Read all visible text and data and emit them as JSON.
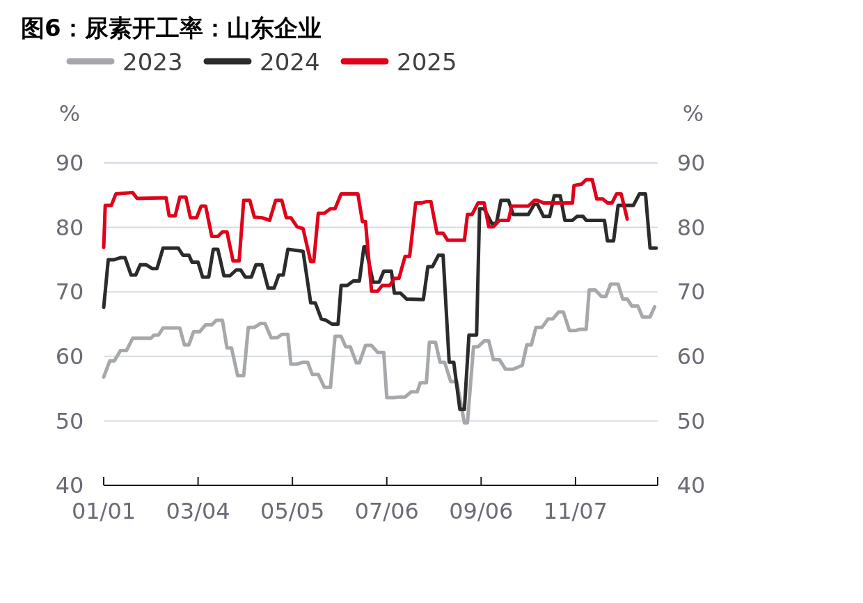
{
  "chart_data": {
    "type": "line",
    "title": "图6：尿素开工率：山东企业",
    "ylabel": "%",
    "y2label": "%",
    "legend": "top left",
    "grid": "y",
    "xlim": [
      "--01-01",
      "--12-31"
    ],
    "xticks": [
      {
        "value": "--01-01",
        "label": "01/01"
      },
      {
        "value": "--03-04",
        "label": "03/04"
      },
      {
        "value": "--05-05",
        "label": "05/05"
      },
      {
        "value": "--07-06",
        "label": "07/06"
      },
      {
        "value": "--09-06",
        "label": "09/06"
      },
      {
        "value": "--11-07",
        "label": "11/07"
      },
      {
        "value": "--12-31",
        "label": null
      }
    ],
    "ylim": [
      40,
      90
    ],
    "yticks": [
      40,
      50,
      60,
      70,
      80,
      90
    ],
    "y2lim": [
      40,
      90
    ],
    "y2ticks": [
      40,
      50,
      60,
      70,
      80,
      90
    ],
    "series": [
      {
        "name": "2023",
        "color": "#a6a8ab",
        "x": [
          "--01-01",
          "--01-05",
          "--01-08",
          "--01-12",
          "--01-16",
          "--01-20",
          "--02-01",
          "--02-03",
          "--02-06",
          "--02-09",
          "--02-20",
          "--02-23",
          "--02-26",
          "--03-01",
          "--03-05",
          "--03-09",
          "--03-13",
          "--03-16",
          "--03-20",
          "--03-23",
          "--03-26",
          "--03-30",
          "--04-03",
          "--04-06",
          "--04-10",
          "--04-14",
          "--04-17",
          "--04-21",
          "--04-25",
          "--04-28",
          "--05-02",
          "--05-04",
          "--05-08",
          "--05-12",
          "--05-15",
          "--05-18",
          "--05-22",
          "--05-26",
          "--05-30",
          "--06-02",
          "--06-06",
          "--06-09",
          "--06-12",
          "--06-16",
          "--06-18",
          "--06-22",
          "--06-26",
          "--06-30",
          "--07-04",
          "--07-06",
          "--07-11",
          "--07-14",
          "--07-18",
          "--07-22",
          "--07-26",
          "--07-28",
          "--08-01",
          "--08-03",
          "--08-07",
          "--08-10",
          "--08-13",
          "--08-17",
          "--08-21",
          "--08-26",
          "--08-28",
          "--09-01",
          "--09-04",
          "--09-08",
          "--09-11",
          "--09-14",
          "--09-18",
          "--09-22",
          "--09-27",
          "--10-03",
          "--10-06",
          "--10-09",
          "--10-12",
          "--10-16",
          "--10-20",
          "--10-23",
          "--10-27",
          "--10-30",
          "--11-03",
          "--11-07",
          "--11-10",
          "--11-14",
          "--11-16",
          "--11-20",
          "--11-24",
          "--11-27",
          "--11-30",
          "--12-05",
          "--12-08",
          "--12-11",
          "--12-14",
          "--12-18",
          "--12-21",
          "--12-26",
          "--12-29"
        ],
        "values": [
          56.8,
          59.3,
          59.3,
          60.9,
          60.9,
          62.8,
          62.8,
          63.3,
          63.3,
          64.4,
          64.4,
          61.8,
          61.8,
          63.8,
          63.8,
          64.9,
          64.9,
          65.6,
          65.6,
          61.3,
          61.3,
          57.0,
          57.0,
          64.5,
          64.5,
          65.1,
          65.1,
          62.9,
          62.9,
          63.4,
          63.4,
          58.8,
          58.8,
          59.1,
          59.1,
          57.2,
          57.2,
          55.2,
          55.2,
          63.1,
          63.1,
          61.5,
          61.5,
          59.0,
          59.0,
          61.7,
          61.7,
          60.6,
          60.6,
          53.6,
          53.6,
          53.7,
          53.7,
          54.5,
          54.5,
          55.9,
          55.9,
          62.2,
          62.2,
          59.1,
          59.1,
          56.1,
          56.1,
          49.7,
          49.7,
          61.5,
          61.5,
          62.4,
          62.4,
          59.5,
          59.5,
          58.0,
          58.0,
          58.6,
          61.8,
          61.8,
          64.5,
          64.5,
          65.8,
          65.8,
          66.9,
          66.9,
          64.0,
          64.0,
          64.2,
          64.2,
          70.3,
          70.3,
          69.3,
          69.3,
          71.2,
          71.2,
          68.9,
          68.9,
          67.8,
          67.8,
          66.1,
          66.1,
          67.7
        ]
      },
      {
        "name": "2024",
        "color": "#2b2b2b",
        "x": [
          "--01-01",
          "--01-04",
          "--01-08",
          "--01-12",
          "--01-15",
          "--01-19",
          "--01-22",
          "--01-25",
          "--01-29",
          "--02-02",
          "--02-05",
          "--02-09",
          "--02-19",
          "--02-22",
          "--02-26",
          "--02-28",
          "--03-04",
          "--03-07",
          "--03-11",
          "--03-14",
          "--03-17",
          "--03-21",
          "--03-25",
          "--03-29",
          "--04-01",
          "--04-04",
          "--04-08",
          "--04-11",
          "--04-15",
          "--04-19",
          "--04-23",
          "--04-26",
          "--04-29",
          "--05-02",
          "--05-12",
          "--05-17",
          "--05-20",
          "--05-24",
          "--05-27",
          "--05-31",
          "--06-04",
          "--06-06",
          "--06-10",
          "--06-14",
          "--06-18",
          "--06-21",
          "--06-22",
          "--06-27",
          "--07-01",
          "--07-04",
          "--07-09",
          "--07-11",
          "--07-15",
          "--07-19",
          "--07-30",
          "--08-02",
          "--08-05",
          "--08-09",
          "--08-12",
          "--08-16",
          "--08-19",
          "--08-23",
          "--08-26",
          "--08-29",
          "--09-03",
          "--09-05",
          "--09-08",
          "--09-13",
          "--09-16",
          "--09-19",
          "--09-24",
          "--09-27",
          "--10-07",
          "--10-11",
          "--10-13",
          "--10-17",
          "--10-21",
          "--10-24",
          "--10-28",
          "--10-31",
          "--11-05",
          "--11-08",
          "--11-12",
          "--11-14",
          "--11-26",
          "--11-28",
          "--12-02",
          "--12-05",
          "--12-15",
          "--12-19",
          "--12-23",
          "--12-26",
          "--12-30"
        ],
        "values": [
          67.6,
          75.0,
          75.0,
          75.3,
          75.3,
          72.6,
          72.6,
          74.2,
          74.2,
          73.6,
          73.6,
          76.8,
          76.8,
          75.7,
          75.7,
          74.6,
          74.6,
          72.3,
          72.3,
          76.6,
          76.6,
          72.5,
          72.5,
          73.4,
          73.4,
          72.3,
          72.3,
          74.2,
          74.2,
          70.6,
          70.6,
          72.6,
          72.6,
          76.6,
          76.3,
          68.3,
          68.3,
          65.8,
          65.6,
          65.0,
          65.0,
          71.0,
          71.0,
          71.7,
          71.7,
          77.0,
          77.0,
          71.5,
          71.5,
          73.2,
          73.2,
          69.8,
          69.8,
          68.9,
          68.8,
          73.9,
          73.9,
          75.7,
          75.7,
          59.1,
          59.1,
          51.8,
          51.8,
          63.3,
          63.3,
          82.9,
          82.9,
          80.6,
          80.6,
          84.2,
          84.2,
          82.0,
          82.0,
          83.6,
          83.6,
          81.7,
          81.7,
          84.9,
          84.9,
          81.1,
          81.1,
          81.7,
          81.7,
          81.1,
          81.1,
          77.9,
          77.9,
          83.4,
          83.4,
          85.2,
          85.2,
          76.8,
          76.8
        ]
      },
      {
        "name": "2025",
        "color": "#e1001a",
        "x": [
          "--01-01",
          "--01-02",
          "--01-06",
          "--01-09",
          "--01-20",
          "--01-23",
          "--02-11",
          "--02-13",
          "--02-17",
          "--02-20",
          "--02-24",
          "--02-27",
          "--03-03",
          "--03-06",
          "--03-09",
          "--03-13",
          "--03-17",
          "--03-20",
          "--03-23",
          "--03-27",
          "--03-31",
          "--04-03",
          "--04-07",
          "--04-10",
          "--04-15",
          "--04-20",
          "--04-24",
          "--04-28",
          "--05-01",
          "--05-04",
          "--05-08",
          "--05-12",
          "--05-17",
          "--05-19",
          "--05-22",
          "--05-26",
          "--05-30",
          "--06-02",
          "--06-06",
          "--06-17",
          "--06-20",
          "--06-22",
          "--06-26",
          "--06-30",
          "--07-03",
          "--07-08",
          "--07-11",
          "--07-14",
          "--07-18",
          "--07-21",
          "--07-25",
          "--07-29",
          "--08-01",
          "--08-04",
          "--08-08",
          "--08-12",
          "--08-15",
          "--08-26",
          "--08-28",
          "--08-31",
          "--09-04",
          "--09-08",
          "--09-11",
          "--09-14",
          "--09-18",
          "--09-24",
          "--09-26",
          "--10-07",
          "--10-11",
          "--10-13",
          "--10-17",
          "--11-05",
          "--11-06",
          "--11-11",
          "--11-14",
          "--11-18",
          "--11-21",
          "--11-25",
          "--11-28",
          "--12-01",
          "--12-04",
          "--12-07",
          "--12-11"
        ],
        "values": [
          76.9,
          83.4,
          83.4,
          85.2,
          85.4,
          84.5,
          84.6,
          81.8,
          81.8,
          84.7,
          84.7,
          81.5,
          81.5,
          83.3,
          83.3,
          78.6,
          78.6,
          79.3,
          79.3,
          74.8,
          74.8,
          84.2,
          84.2,
          81.6,
          81.5,
          81.1,
          84.2,
          84.2,
          81.5,
          81.5,
          80.1,
          79.8,
          74.7,
          74.7,
          82.2,
          82.2,
          82.9,
          82.9,
          85.2,
          85.2,
          80.9,
          80.9,
          70.1,
          70.1,
          71.0,
          71.0,
          72.1,
          72.1,
          75.5,
          75.5,
          83.8,
          83.8,
          84.0,
          84.0,
          79.1,
          79.1,
          78.0,
          78.0,
          82.0,
          82.0,
          83.8,
          83.8,
          80.1,
          80.1,
          81.1,
          81.1,
          83.3,
          83.3,
          84.2,
          84.2,
          83.8,
          83.8,
          86.5,
          86.7,
          87.4,
          87.4,
          84.4,
          84.4,
          83.8,
          83.8,
          85.2,
          85.2,
          81.3
        ]
      }
    ]
  }
}
